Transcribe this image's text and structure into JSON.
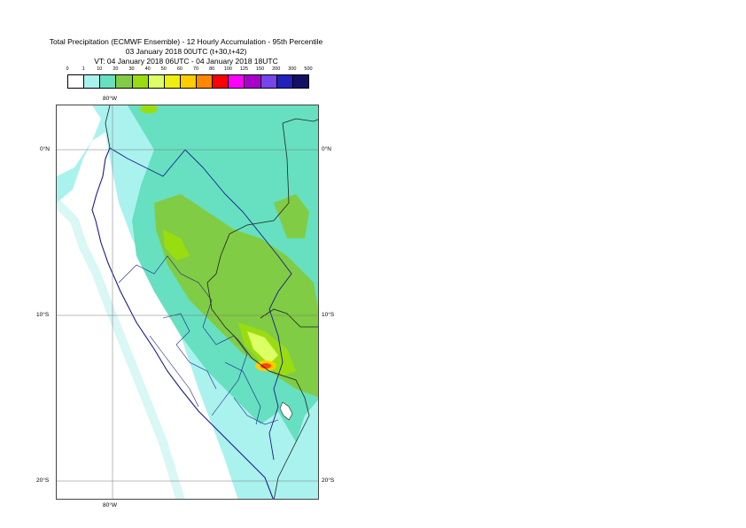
{
  "title": {
    "line1": "Total Precipitation (ECMWF Ensemble) - 12 Hourly Accumulation - 95th Percentile",
    "line2": "03 January 2018 00UTC (t+30,t+42)",
    "line3": "VT: 04 January 2018 06UTC - 04 January 2018 18UTC"
  },
  "legend": {
    "labels": [
      "0",
      "1",
      "10",
      "20",
      "30",
      "40",
      "50",
      "60",
      "70",
      "80",
      "100",
      "125",
      "150",
      "200",
      "300",
      "500"
    ],
    "colors": [
      "#ffffff",
      "#aaf2ee",
      "#66e0c0",
      "#80cc44",
      "#99dd11",
      "#ddff66",
      "#eeee11",
      "#ffcc00",
      "#ff8800",
      "#ff0000",
      "#ff00ff",
      "#aa00cc",
      "#7744ee",
      "#2222bb",
      "#111166"
    ]
  },
  "map": {
    "lon_labels": [
      "80°W",
      "80°W"
    ],
    "lat_labels": [
      "0°N",
      "0°N",
      "10°S",
      "10°S",
      "20°S",
      "20°S"
    ]
  }
}
